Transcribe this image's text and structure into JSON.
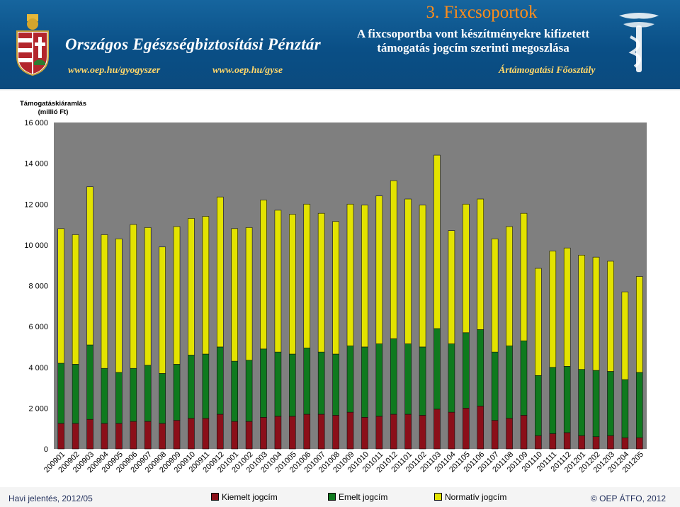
{
  "header": {
    "org_title": "Országos Egészségbiztosítási Pénztár",
    "slide_title": "3. Fixcsoportok",
    "subtitle_line1": "A fixcsoportba vont készítményekre kifizetett",
    "subtitle_line2": "támogatás jogcím szerinti megoszlása",
    "url1": "www.oep.hu/gyogyszer",
    "url2": "www.oep.hu/gyse",
    "department": "Ártámogatási Főosztály"
  },
  "footer": {
    "left": "Havi jelentés, 2012/05",
    "right": "© OEP ÁTFO, 2012"
  },
  "colors": {
    "kiemelt": "#8b0f19",
    "emelt": "#0f7a1e",
    "normativ": "#e3e300",
    "plot_bg": "#7f7f7f"
  },
  "chart_data": {
    "type": "bar",
    "stacked": true,
    "ylabel_line1": "Támogatáskiáramlás",
    "ylabel_line2": "(millió Ft)",
    "ylim": [
      0,
      16000
    ],
    "yticks": [
      0,
      2000,
      4000,
      6000,
      8000,
      10000,
      12000,
      14000,
      16000
    ],
    "ytick_labels": [
      "0",
      "2 000",
      "4 000",
      "6 000",
      "8 000",
      "10 000",
      "12 000",
      "14 000",
      "16 000"
    ],
    "grid": false,
    "legend_position": "bottom",
    "categories": [
      "200901",
      "200902",
      "200903",
      "200904",
      "200905",
      "200906",
      "200907",
      "200908",
      "200909",
      "200910",
      "200911",
      "200912",
      "201001",
      "201002",
      "201003",
      "201004",
      "201005",
      "201006",
      "201007",
      "201008",
      "201009",
      "201010",
      "201011",
      "201012",
      "201101",
      "201102",
      "201103",
      "201104",
      "201105",
      "201106",
      "201107",
      "201108",
      "201109",
      "201110",
      "201111",
      "201112",
      "201201",
      "201202",
      "201203",
      "201204",
      "201205"
    ],
    "series": [
      {
        "name": "Kiemelt jogcím",
        "color": "#8b0f19",
        "values": [
          1250,
          1250,
          1450,
          1250,
          1250,
          1350,
          1350,
          1250,
          1400,
          1500,
          1500,
          1700,
          1350,
          1350,
          1550,
          1600,
          1600,
          1700,
          1700,
          1650,
          1800,
          1550,
          1600,
          1700,
          1700,
          1650,
          1950,
          1800,
          2000,
          2100,
          1400,
          1500,
          1650,
          650,
          750,
          800,
          650,
          600,
          650,
          550,
          550
        ]
      },
      {
        "name": "Emelt jogcím",
        "color": "#0f7a1e",
        "values": [
          2950,
          2900,
          3650,
          2700,
          2500,
          2600,
          2750,
          2450,
          2750,
          3100,
          3150,
          3300,
          2950,
          3000,
          3350,
          3150,
          3050,
          3250,
          3050,
          3000,
          3250,
          3450,
          3550,
          3700,
          3450,
          3350,
          3950,
          3350,
          3700,
          3750,
          3350,
          3550,
          3650,
          2950,
          3250,
          3250,
          3250,
          3250,
          3150,
          2850,
          3200
        ]
      },
      {
        "name": "Normatív jogcím",
        "color": "#e3e300",
        "values": [
          6600,
          6350,
          7750,
          6550,
          6550,
          7050,
          6750,
          6200,
          6750,
          6700,
          6750,
          7350,
          6500,
          6500,
          7300,
          6950,
          6850,
          7050,
          6800,
          6500,
          6950,
          6950,
          7250,
          7750,
          7100,
          6950,
          8500,
          5550,
          6300,
          6400,
          5550,
          5850,
          6250,
          5250,
          5700,
          5800,
          5600,
          5550,
          5400,
          4300,
          4700
        ]
      }
    ]
  }
}
